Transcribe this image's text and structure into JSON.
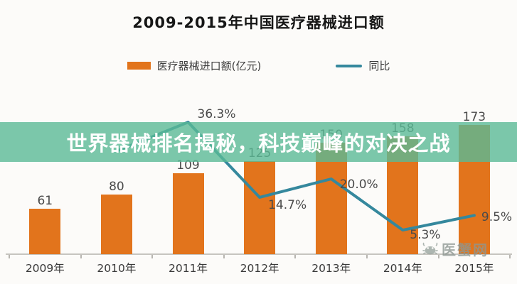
{
  "title": "2009-2015年中国医疗器械进口额",
  "banner": {
    "text": "世界器械排名揭秘，科技巅峰的对决之战"
  },
  "legend": {
    "items": [
      {
        "label": "医疗器械进口额(亿元)",
        "type": "bar",
        "color": "#e2741c"
      },
      {
        "label": "同比",
        "type": "line",
        "color": "#35889d"
      }
    ]
  },
  "watermark": {
    "text": "医蟹网",
    "logo": "crab-icon"
  },
  "colors": {
    "bar": "#e2741c",
    "line": "#35889d",
    "banner_overlay": "rgba(90,186,150,0.80)",
    "banner_text": "#ffffff",
    "background": "#fcfbf9"
  },
  "chart_data": {
    "type": "bar",
    "combo": "bar+line",
    "title": "2009-2015年中国医疗器械进口额",
    "categories": [
      "2009年",
      "2010年",
      "2011年",
      "2012年",
      "2013年",
      "2014年",
      "2015年"
    ],
    "series": [
      {
        "name": "医疗器械进口额(亿元)",
        "type": "bar",
        "color": "#e2741c",
        "values": [
          61,
          80,
          109,
          125,
          150,
          158,
          173
        ]
      },
      {
        "name": "同比",
        "type": "line",
        "color": "#35889d",
        "values_percent": [
          null,
          28,
          36.3,
          14.7,
          20.0,
          5.3,
          9.5
        ],
        "point_labels": [
          "",
          "",
          "36.3%",
          "14.7%",
          "20.0%",
          "5.3%",
          "9.5%"
        ],
        "note": "2010 point is unlabeled in the image (hidden behind the banner overlay); its value is estimated"
      }
    ],
    "xlabel": "",
    "ylabel": "",
    "legend_position": "top",
    "grid": false
  }
}
